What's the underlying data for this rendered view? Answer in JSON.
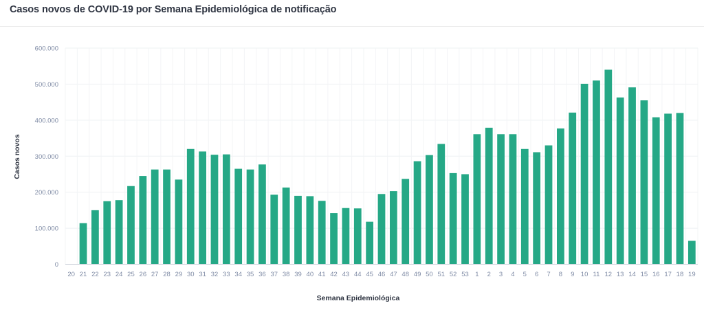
{
  "chart_data": {
    "type": "bar",
    "title": "Casos novos de COVID-19 por Semana Epidemiológica de notificação",
    "xlabel": "Semana Epidemiológica",
    "ylabel": "Casos novos",
    "ylim": [
      0,
      600000
    ],
    "yticks": [
      0,
      100000,
      200000,
      300000,
      400000,
      500000,
      600000
    ],
    "ytick_labels": [
      "0",
      "100.000",
      "200.000",
      "300.000",
      "400.000",
      "500.000",
      "600.000"
    ],
    "grid": true,
    "bar_color": "#25a886",
    "categories": [
      "20",
      "21",
      "22",
      "23",
      "24",
      "25",
      "26",
      "27",
      "28",
      "29",
      "30",
      "31",
      "32",
      "33",
      "34",
      "35",
      "36",
      "37",
      "38",
      "39",
      "40",
      "41",
      "42",
      "43",
      "44",
      "45",
      "46",
      "47",
      "48",
      "49",
      "50",
      "51",
      "52",
      "53",
      "1",
      "2",
      "3",
      "4",
      "5",
      "6",
      "7",
      "8",
      "9",
      "10",
      "11",
      "12",
      "13",
      "14",
      "15",
      "16",
      "17",
      "18",
      "19"
    ],
    "values": [
      null,
      114000,
      150000,
      175000,
      178000,
      217000,
      245000,
      263000,
      263000,
      235000,
      320000,
      313000,
      304000,
      305000,
      265000,
      263000,
      277000,
      193000,
      213000,
      190000,
      189000,
      176000,
      142000,
      156000,
      155000,
      118000,
      195000,
      203000,
      237000,
      286000,
      303000,
      334000,
      253000,
      250000,
      361000,
      379000,
      361000,
      361000,
      320000,
      311000,
      330000,
      377000,
      421000,
      501000,
      510000,
      540000,
      463000,
      491000,
      455000,
      408000,
      418000,
      420000,
      65000
    ]
  }
}
